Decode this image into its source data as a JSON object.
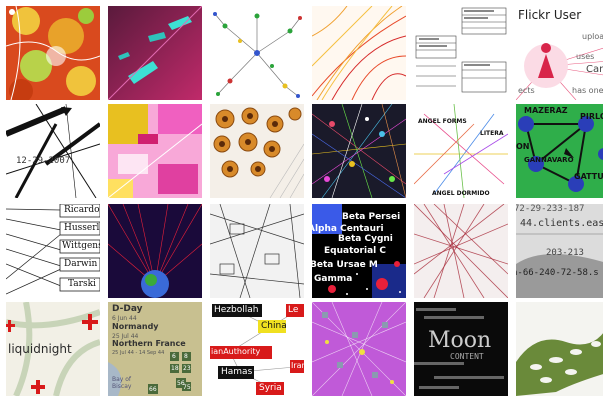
{
  "tiles": {
    "flickr_user": {
      "title": "Flickr User",
      "words": [
        "upload",
        "uses",
        "Came",
        "has one",
        "ects"
      ]
    },
    "graph_labels": {
      "label_a": "ANGEL FORMS",
      "label_b": "ANGEL DORMIDO",
      "label_c": "LITERA"
    },
    "soccer_names": [
      "MAZERAZ",
      "PIRLO",
      "GANNAVARO",
      "GATTU",
      "ON"
    ],
    "timeline_text": "12-29-2007",
    "philosophers": [
      "Ricardo",
      "Husserl",
      "Wittgenstei",
      "Darwin",
      "Tarski"
    ],
    "stars": [
      "Beta Persei",
      "Alpha Centauri",
      "Beta Cygni",
      "Equatorial C",
      "Beta Ursae M",
      "Gamma"
    ],
    "ip_text": [
      "72-29-233-187",
      "44.clients.eas",
      "203-213",
      "a-66-240-72-58.s"
    ],
    "liquidnight": "liquidnight",
    "dday": {
      "title": "D-Day",
      "date1": "6 Jun 44",
      "place1": "Normandy",
      "date2": "25 Jul 44",
      "place2": "Northern France",
      "date3": "25 Jul 44 - 14 Sep 44",
      "badges": [
        "6",
        "8",
        "18",
        "23",
        "56",
        "66",
        "75"
      ],
      "note": "Bay of Biscay"
    },
    "orgs": [
      "Hezbollah",
      "Le",
      "China",
      "ianAuthority",
      "Iran",
      "Hamas",
      "Syria"
    ],
    "moon": {
      "big": "Moon",
      "small": "CONTENT"
    }
  }
}
